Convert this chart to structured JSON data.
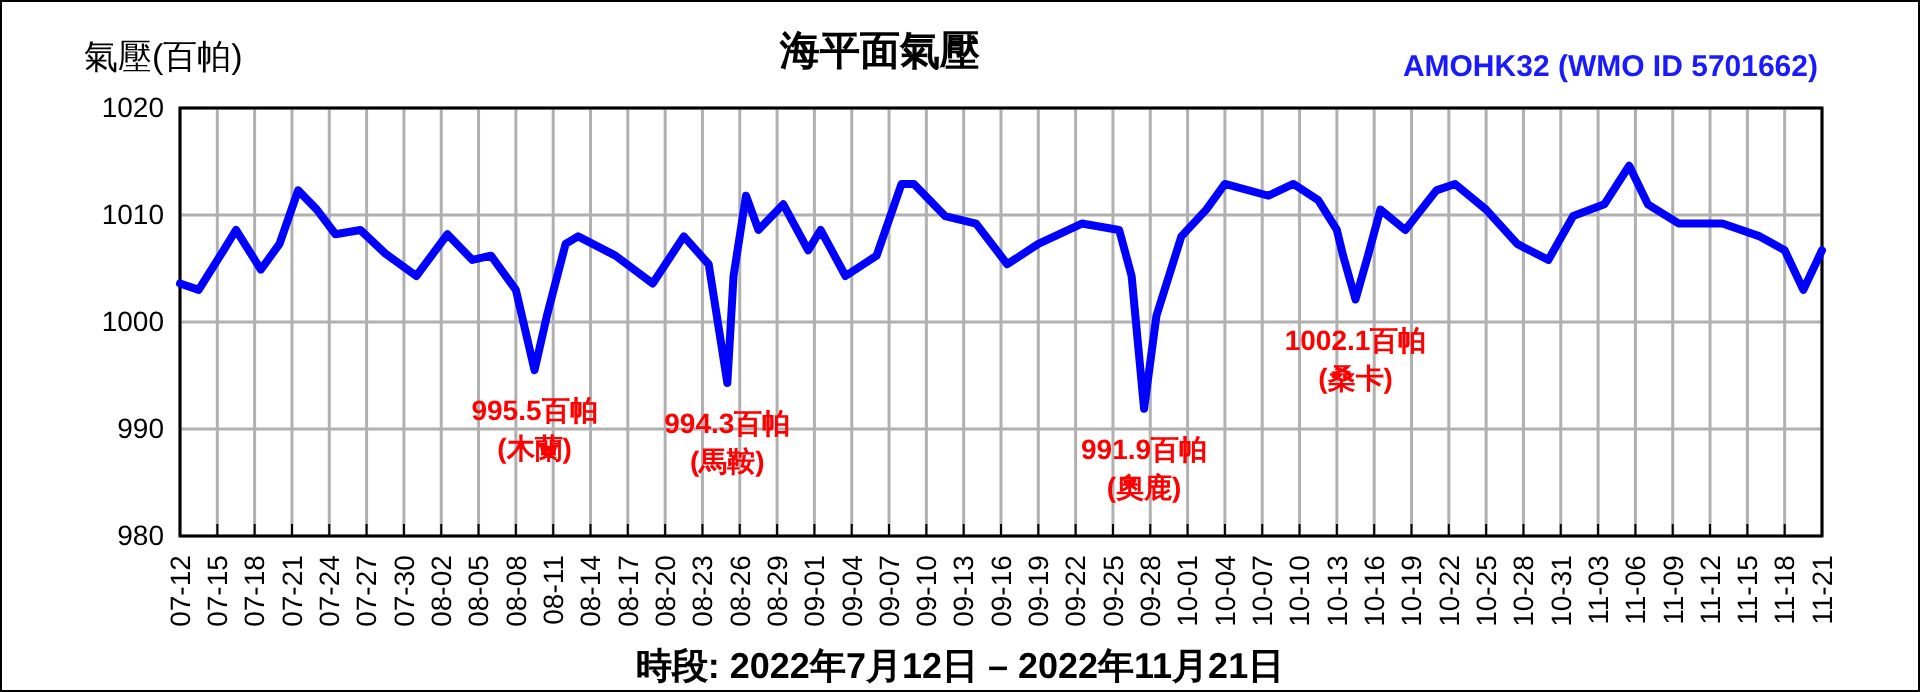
{
  "chart_data": {
    "type": "line",
    "title": "海平面氣壓",
    "subtitle": "AMOHK32 (WMO ID 5701662)",
    "ylabel": "氣壓(百帕)",
    "xlabel": "時段: 2022年7月12日 – 2022年11月21日",
    "x": [
      "2022-07-12T00:00",
      "2022-07-13T12:00",
      "2022-07-15T12:00",
      "2022-07-16T12:00",
      "2022-07-18T12:00",
      "2022-07-20T00:00",
      "2022-07-21T12:00",
      "2022-07-23T00:00",
      "2022-07-24T12:00",
      "2022-07-26T12:00",
      "2022-07-28T12:00",
      "2022-07-31T00:00",
      "2022-08-02T12:00",
      "2022-08-04T12:00",
      "2022-08-06T00:00",
      "2022-08-08T00:00",
      "2022-08-09T12:00",
      "2022-08-10T12:00",
      "2022-08-12T00:00",
      "2022-08-13T00:00",
      "2022-08-16T00:00",
      "2022-08-19T00:00",
      "2022-08-21T12:00",
      "2022-08-23T12:00",
      "2022-08-25T00:00",
      "2022-08-25T12:00",
      "2022-08-26T12:00",
      "2022-08-27T12:00",
      "2022-08-29T12:00",
      "2022-08-31T12:00",
      "2022-09-01T12:00",
      "2022-09-03T12:00",
      "2022-09-06T00:00",
      "2022-09-08T00:00",
      "2022-09-09T00:00",
      "2022-09-11T12:00",
      "2022-09-14T00:00",
      "2022-09-16T12:00",
      "2022-09-19T00:00",
      "2022-09-22T12:00",
      "2022-09-25T12:00",
      "2022-09-26T12:00",
      "2022-09-27T12:00",
      "2022-09-28T12:00",
      "2022-09-30T12:00",
      "2022-10-02T12:00",
      "2022-10-04T00:00",
      "2022-10-07T12:00",
      "2022-10-09T12:00",
      "2022-10-11T12:00",
      "2022-10-13T00:00",
      "2022-10-13T12:00",
      "2022-10-14T12:00",
      "2022-10-15T12:00",
      "2022-10-16T12:00",
      "2022-10-18T12:00",
      "2022-10-21T00:00",
      "2022-10-22T12:00",
      "2022-10-25T00:00",
      "2022-10-27T12:00",
      "2022-10-30T00:00",
      "2022-11-01T00:00",
      "2022-11-03T12:00",
      "2022-11-05T12:00",
      "2022-11-07T00:00",
      "2022-11-09T12:00",
      "2022-11-13T00:00",
      "2022-11-16T00:00",
      "2022-11-18T00:00",
      "2022-11-19T12:00",
      "2022-11-21T00:00"
    ],
    "series": [
      {
        "color": "#0000ff",
        "values": [
          1003.6,
          1003.0,
          1006.7,
          1008.6,
          1004.9,
          1007.3,
          1012.3,
          1010.5,
          1008.2,
          1008.6,
          1006.4,
          1004.3,
          1008.2,
          1005.8,
          1006.2,
          1003.0,
          995.5,
          1000.6,
          1007.3,
          1008.0,
          1006.2,
          1003.6,
          1008.0,
          1005.4,
          994.3,
          1004.3,
          1011.8,
          1008.6,
          1011.0,
          1006.7,
          1008.6,
          1004.3,
          1006.2,
          1012.9,
          1012.9,
          1009.9,
          1009.2,
          1005.4,
          1007.3,
          1009.2,
          1008.6,
          1004.3,
          991.9,
          1000.6,
          1008.0,
          1010.5,
          1012.9,
          1011.8,
          1012.9,
          1011.4,
          1008.6,
          1006.2,
          1002.1,
          1006.2,
          1010.5,
          1008.6,
          1012.3,
          1012.9,
          1010.5,
          1007.3,
          1005.8,
          1009.9,
          1011.0,
          1014.6,
          1011.0,
          1009.2,
          1009.2,
          1008.0,
          1006.7,
          1003.0,
          1006.7
        ]
      }
    ],
    "annotations": [
      {
        "text": "995.5百帕\n(木蘭)",
        "x": "2022-08-09T12:00",
        "y": 995.5
      },
      {
        "text": "994.3百帕\n(馬鞍)",
        "x": "2022-08-25T00:00",
        "y": 994.3
      },
      {
        "text": "991.9百帕\n(奧鹿)",
        "x": "2022-09-27T12:00",
        "y": 991.9
      },
      {
        "text": "1002.1百帕\n(桑卡)",
        "x": "2022-10-14T12:00",
        "y": 1002.1
      }
    ],
    "xlim": [
      "2022-07-12T00:00",
      "2022-11-21T00:00"
    ],
    "xticks": [
      {
        "value": "2022-07-12",
        "label": "07-12"
      },
      {
        "value": "2022-07-15",
        "label": "07-15"
      },
      {
        "value": "2022-07-18",
        "label": "07-18"
      },
      {
        "value": "2022-07-21",
        "label": "07-21"
      },
      {
        "value": "2022-07-24",
        "label": "07-24"
      },
      {
        "value": "2022-07-27",
        "label": "07-27"
      },
      {
        "value": "2022-07-30",
        "label": "07-30"
      },
      {
        "value": "2022-08-02",
        "label": "08-02"
      },
      {
        "value": "2022-08-05",
        "label": "08-05"
      },
      {
        "value": "2022-08-08",
        "label": "08-08"
      },
      {
        "value": "2022-08-11",
        "label": "08-11"
      },
      {
        "value": "2022-08-14",
        "label": "08-14"
      },
      {
        "value": "2022-08-17",
        "label": "08-17"
      },
      {
        "value": "2022-08-20",
        "label": "08-20"
      },
      {
        "value": "2022-08-23",
        "label": "08-23"
      },
      {
        "value": "2022-08-26",
        "label": "08-26"
      },
      {
        "value": "2022-08-29",
        "label": "08-29"
      },
      {
        "value": "2022-09-01",
        "label": "09-01"
      },
      {
        "value": "2022-09-04",
        "label": "09-04"
      },
      {
        "value": "2022-09-07",
        "label": "09-07"
      },
      {
        "value": "2022-09-10",
        "label": "09-10"
      },
      {
        "value": "2022-09-13",
        "label": "09-13"
      },
      {
        "value": "2022-09-16",
        "label": "09-16"
      },
      {
        "value": "2022-09-19",
        "label": "09-19"
      },
      {
        "value": "2022-09-22",
        "label": "09-22"
      },
      {
        "value": "2022-09-25",
        "label": "09-25"
      },
      {
        "value": "2022-09-28",
        "label": "09-28"
      },
      {
        "value": "2022-10-01",
        "label": "10-01"
      },
      {
        "value": "2022-10-04",
        "label": "10-04"
      },
      {
        "value": "2022-10-07",
        "label": "10-07"
      },
      {
        "value": "2022-10-10",
        "label": "10-10"
      },
      {
        "value": "2022-10-13",
        "label": "10-13"
      },
      {
        "value": "2022-10-16",
        "label": "10-16"
      },
      {
        "value": "2022-10-19",
        "label": "10-19"
      },
      {
        "value": "2022-10-22",
        "label": "10-22"
      },
      {
        "value": "2022-10-25",
        "label": "10-25"
      },
      {
        "value": "2022-10-28",
        "label": "10-28"
      },
      {
        "value": "2022-10-31",
        "label": "10-31"
      },
      {
        "value": "2022-11-03",
        "label": "11-03"
      },
      {
        "value": "2022-11-06",
        "label": "11-06"
      },
      {
        "value": "2022-11-09",
        "label": "11-09"
      },
      {
        "value": "2022-11-12",
        "label": "11-12"
      },
      {
        "value": "2022-11-15",
        "label": "11-15"
      },
      {
        "value": "2022-11-18",
        "label": "11-18"
      },
      {
        "value": "2022-11-21",
        "label": "11-21"
      }
    ],
    "ylim": [
      980,
      1020
    ],
    "yticks": [
      980,
      990,
      1000,
      1010,
      1020
    ],
    "grid": true,
    "marker": "none",
    "line_style": "solid"
  }
}
